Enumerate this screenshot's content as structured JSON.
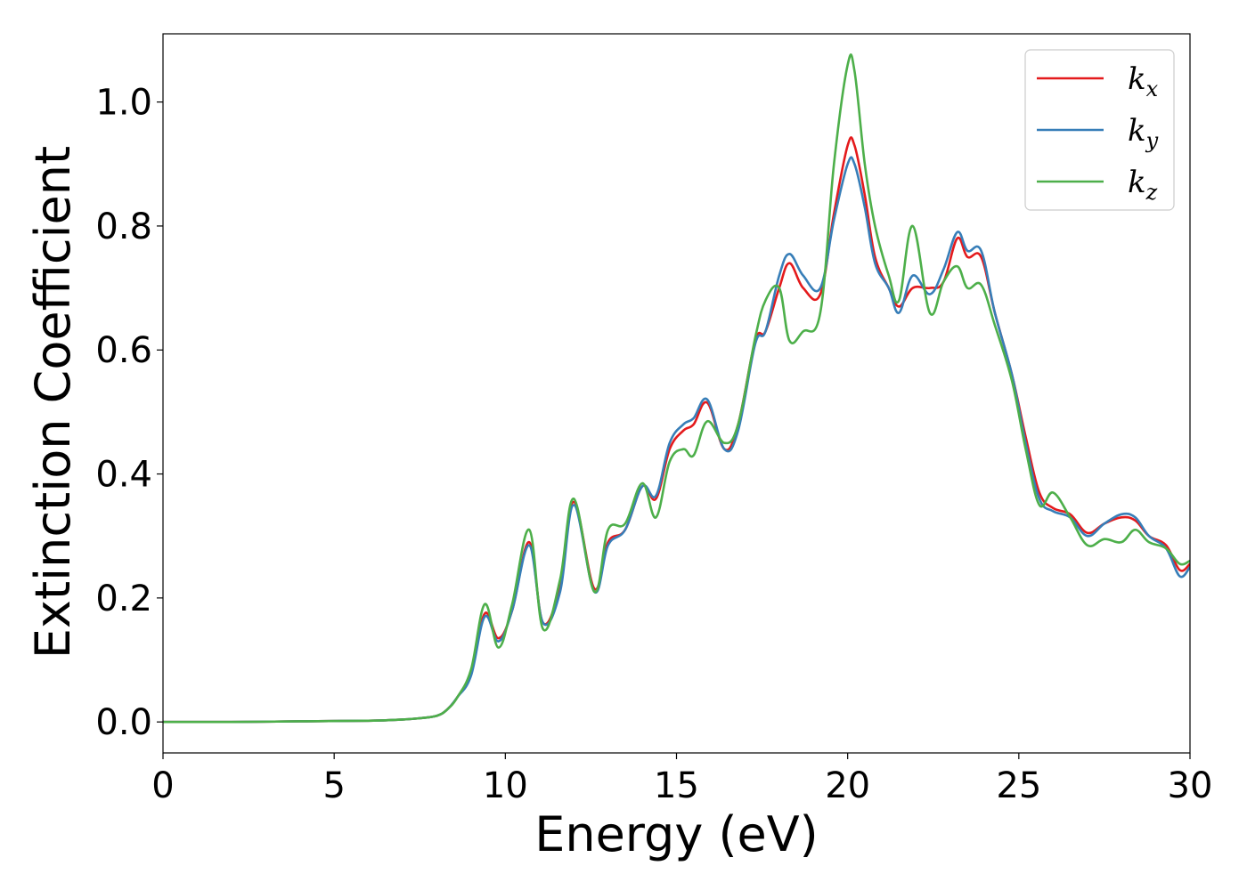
{
  "chart_data": {
    "type": "line",
    "xlabel": "Energy (eV)",
    "ylabel": "Extinction Coefficient",
    "xlim": [
      0,
      30
    ],
    "ylim": [
      -0.05,
      1.11
    ],
    "x_ticks": [
      "0",
      "5",
      "10",
      "15",
      "20",
      "25",
      "30"
    ],
    "y_ticks": [
      "0.0",
      "0.2",
      "0.4",
      "0.6",
      "0.8",
      "1.0"
    ],
    "grid": false,
    "legend_position": "top-right",
    "legend": [
      {
        "base": "k",
        "sub": "x"
      },
      {
        "base": "k",
        "sub": "y"
      },
      {
        "base": "k",
        "sub": "z"
      }
    ],
    "x": [
      0,
      2,
      4,
      6,
      7,
      7.5,
      8,
      8.3,
      8.6,
      9,
      9.4,
      9.8,
      10.2,
      10.7,
      11.1,
      11.6,
      12.0,
      12.6,
      13.0,
      13.5,
      14.0,
      14.4,
      14.8,
      15.2,
      15.5,
      15.9,
      16.4,
      16.8,
      17.3,
      17.6,
      18.0,
      18.3,
      18.7,
      19.2,
      19.6,
      20.0,
      20.2,
      20.5,
      20.8,
      21.2,
      21.5,
      21.9,
      22.4,
      22.8,
      23.2,
      23.5,
      23.9,
      24.3,
      24.8,
      25.2,
      25.6,
      26.0,
      26.5,
      27.0,
      27.5,
      28.0,
      28.4,
      28.8,
      29.3,
      29.7,
      30
    ],
    "series": [
      {
        "name": "k_x",
        "color": "#e41a1c",
        "values": [
          0.0,
          0.0,
          0.001,
          0.002,
          0.004,
          0.006,
          0.01,
          0.02,
          0.04,
          0.08,
          0.175,
          0.135,
          0.18,
          0.29,
          0.16,
          0.22,
          0.355,
          0.215,
          0.29,
          0.31,
          0.38,
          0.36,
          0.44,
          0.47,
          0.48,
          0.515,
          0.44,
          0.48,
          0.615,
          0.63,
          0.7,
          0.74,
          0.7,
          0.69,
          0.82,
          0.93,
          0.93,
          0.85,
          0.75,
          0.7,
          0.67,
          0.7,
          0.7,
          0.71,
          0.78,
          0.75,
          0.75,
          0.66,
          0.56,
          0.46,
          0.37,
          0.345,
          0.335,
          0.305,
          0.32,
          0.33,
          0.325,
          0.3,
          0.285,
          0.245,
          0.255
        ]
      },
      {
        "name": "k_y",
        "color": "#377eb8",
        "values": [
          0.0,
          0.0,
          0.001,
          0.002,
          0.004,
          0.006,
          0.01,
          0.02,
          0.04,
          0.075,
          0.17,
          0.13,
          0.18,
          0.285,
          0.16,
          0.21,
          0.35,
          0.21,
          0.285,
          0.31,
          0.38,
          0.365,
          0.45,
          0.48,
          0.49,
          0.52,
          0.44,
          0.47,
          0.61,
          0.63,
          0.72,
          0.755,
          0.72,
          0.7,
          0.81,
          0.9,
          0.9,
          0.83,
          0.74,
          0.7,
          0.66,
          0.72,
          0.69,
          0.73,
          0.79,
          0.76,
          0.76,
          0.66,
          0.56,
          0.45,
          0.36,
          0.34,
          0.33,
          0.3,
          0.32,
          0.335,
          0.33,
          0.3,
          0.28,
          0.235,
          0.25
        ]
      },
      {
        "name": "k_z",
        "color": "#4daf4a",
        "values": [
          0.0,
          0.0,
          0.001,
          0.002,
          0.004,
          0.006,
          0.01,
          0.02,
          0.04,
          0.085,
          0.19,
          0.12,
          0.19,
          0.31,
          0.15,
          0.23,
          0.36,
          0.21,
          0.31,
          0.32,
          0.385,
          0.33,
          0.42,
          0.44,
          0.43,
          0.485,
          0.45,
          0.48,
          0.62,
          0.68,
          0.7,
          0.615,
          0.63,
          0.66,
          0.9,
          1.06,
          1.05,
          0.9,
          0.8,
          0.72,
          0.68,
          0.8,
          0.66,
          0.71,
          0.735,
          0.7,
          0.705,
          0.64,
          0.55,
          0.44,
          0.35,
          0.37,
          0.33,
          0.285,
          0.295,
          0.29,
          0.31,
          0.29,
          0.28,
          0.255,
          0.26
        ]
      }
    ]
  }
}
